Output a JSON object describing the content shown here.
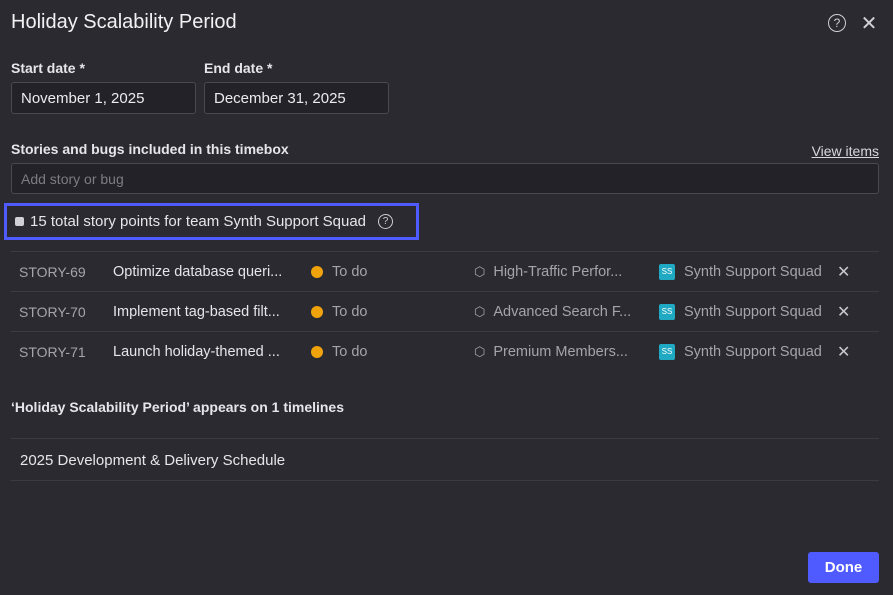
{
  "dialog": {
    "title": "Holiday Scalability Period",
    "help_icon": "question-circle-icon",
    "close_icon": "close-icon"
  },
  "dates": {
    "start_label": "Start date *",
    "start_value": "November 1, 2025",
    "end_label": "End date *",
    "end_value": "December 31, 2025"
  },
  "items": {
    "label": "Stories and bugs included in this timebox",
    "view_link": "View items",
    "placeholder": "Add story or bug",
    "summary": "15 total story points for team Synth Support Squad",
    "rows": [
      {
        "key": "STORY-69",
        "name": "Optimize database queri...",
        "status": "To do",
        "epic": "High-Traffic Perfor...",
        "team_initials": "SS",
        "team": "Synth Support Squad"
      },
      {
        "key": "STORY-70",
        "name": "Implement tag-based filt...",
        "status": "To do",
        "epic": "Advanced Search F...",
        "team_initials": "SS",
        "team": "Synth Support Squad"
      },
      {
        "key": "STORY-71",
        "name": "Launch holiday-themed ...",
        "status": "To do",
        "epic": "Premium Members...",
        "team_initials": "SS",
        "team": "Synth Support Squad"
      }
    ]
  },
  "timelines": {
    "heading": "‘Holiday Scalability Period’ appears on 1 timelines",
    "items": [
      "2025 Development & Delivery Schedule"
    ]
  },
  "footer": {
    "done": "Done"
  },
  "colors": {
    "accent": "#4f5bff",
    "status_todo": "#f0a30a",
    "team_badge": "#1fa9c2"
  }
}
